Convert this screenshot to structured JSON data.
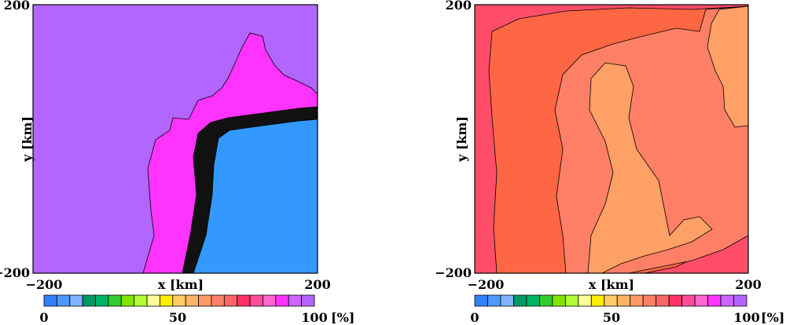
{
  "chart_data": [
    {
      "type": "heatmap",
      "title": "",
      "xlabel": "x [km]",
      "ylabel": "y [km]",
      "xlim": [
        -200,
        200
      ],
      "ylim": [
        -200,
        200
      ],
      "x_tick_labels": [
        "−200",
        "200"
      ],
      "y_tick_labels": [
        "−200",
        "200"
      ],
      "contour_regions": [
        {
          "name": "upper-left region",
          "value": 97,
          "color": "#b266ff"
        },
        {
          "name": "transition band",
          "value": 92,
          "color": "#ff33ff"
        },
        {
          "name": "lower-right region",
          "value": 3,
          "color": "#3399ff"
        }
      ]
    },
    {
      "type": "heatmap",
      "title": "",
      "xlabel": "x [km]",
      "ylabel": "y [km]",
      "xlim": [
        -200,
        200
      ],
      "ylim": [
        -200,
        200
      ],
      "x_tick_labels": [
        "−200",
        "200"
      ],
      "y_tick_labels": [
        "−200",
        "200"
      ],
      "contour_regions": [
        {
          "name": "outer band",
          "value": 75,
          "color": "#ff4d6a"
        },
        {
          "name": "mid band",
          "value": 70,
          "color": "#ff6644"
        },
        {
          "name": "inner band",
          "value": 65,
          "color": "#ff8066"
        },
        {
          "name": "core band",
          "value": 60,
          "color": "#ffa066"
        }
      ]
    }
  ],
  "colorbar": {
    "min_label": "0",
    "mid_label": "50",
    "max_label": "100",
    "unit": "[%]",
    "colors": [
      "#3380ff",
      "#4d99ff",
      "#80b3ff",
      "#009966",
      "#00b366",
      "#33cc33",
      "#80e600",
      "#b3ff33",
      "#ffff99",
      "#ffee00",
      "#ffcc66",
      "#ffb366",
      "#ff9966",
      "#ff8066",
      "#ff6666",
      "#ff3366",
      "#ff4d99",
      "#ff66cc",
      "#ff33ff",
      "#cc66ff",
      "#b266ff"
    ]
  }
}
